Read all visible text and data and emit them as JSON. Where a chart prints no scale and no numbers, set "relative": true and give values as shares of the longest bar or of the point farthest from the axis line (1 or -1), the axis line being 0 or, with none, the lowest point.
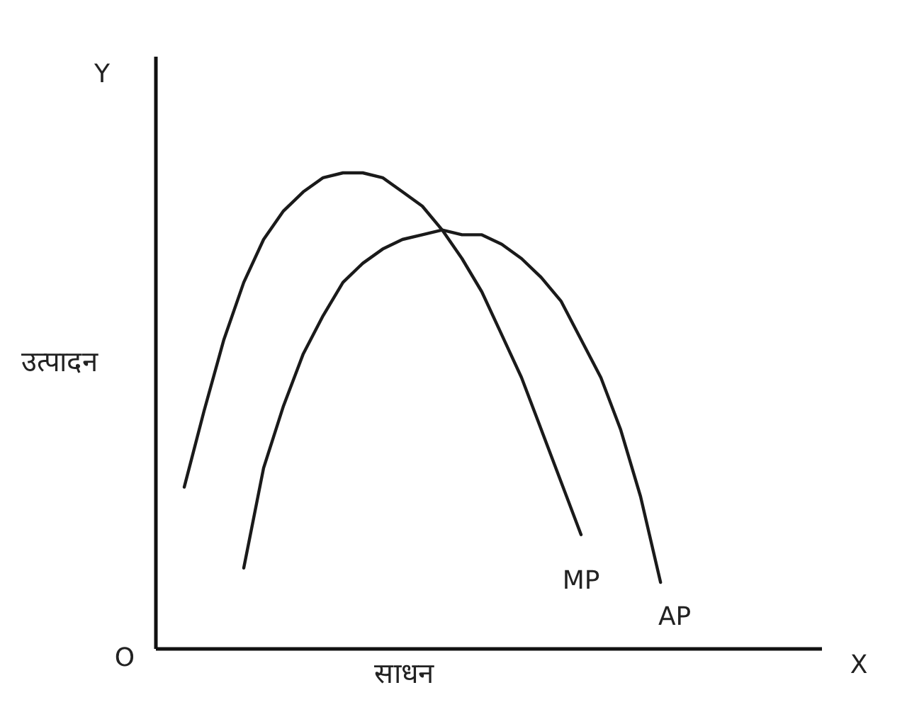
{
  "chart_data": {
    "type": "line",
    "relative": true,
    "xlabel": "साधन",
    "ylabel": "उत्पादन",
    "annotations": [
      "Y",
      "O",
      "X"
    ],
    "categories": [
      null,
      null,
      null,
      null,
      null,
      null,
      null,
      null,
      null,
      null,
      null,
      null,
      null,
      null,
      null,
      null,
      null,
      null,
      null,
      null,
      null,
      null,
      null,
      null,
      null
    ],
    "series": [
      {
        "name": "MP",
        "color": "#1a1a1a",
        "values": [
          0.34,
          0.5,
          0.65,
          0.77,
          0.86,
          0.92,
          0.96,
          0.99,
          1.0,
          1.0,
          0.99,
          0.96,
          0.93,
          0.88,
          0.82,
          0.75,
          0.66,
          0.57,
          0.46,
          0.35,
          0.24,
          null,
          null,
          null,
          null
        ]
      },
      {
        "name": "AP",
        "color": "#1a1a1a",
        "values": [
          null,
          null,
          null,
          0.17,
          0.38,
          0.51,
          0.62,
          0.7,
          0.77,
          0.81,
          0.84,
          0.86,
          0.87,
          0.88,
          0.87,
          0.87,
          0.85,
          0.82,
          0.78,
          0.73,
          0.65,
          0.57,
          0.46,
          0.32,
          0.14
        ]
      }
    ],
    "line_style": "solid"
  }
}
